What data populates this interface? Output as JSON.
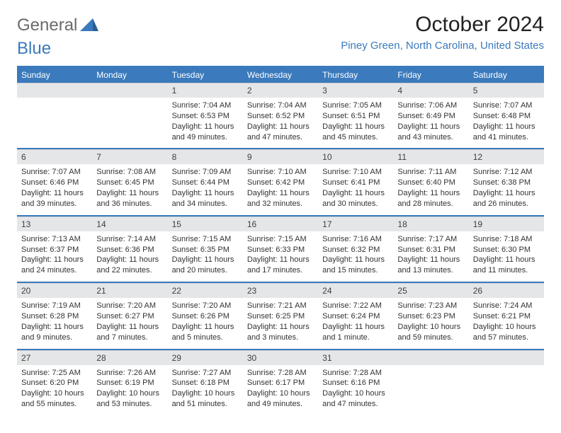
{
  "brand": {
    "part1": "General",
    "part2": "Blue"
  },
  "header": {
    "month_year": "October 2024",
    "location": "Piney Green, North Carolina, United States"
  },
  "colors": {
    "accent": "#3a7abd",
    "header_bg": "#3a7abd",
    "header_text": "#ffffff",
    "daynum_bg": "#e4e6e8",
    "body_text": "#333333",
    "page_bg": "#ffffff",
    "logo_gray": "#6a6a6a"
  },
  "calendar": {
    "day_names": [
      "Sunday",
      "Monday",
      "Tuesday",
      "Wednesday",
      "Thursday",
      "Friday",
      "Saturday"
    ],
    "leading_blanks": 2,
    "weeks": 5,
    "days": [
      {
        "n": 1,
        "sunrise": "7:04 AM",
        "sunset": "6:53 PM",
        "daylight": "11 hours and 49 minutes."
      },
      {
        "n": 2,
        "sunrise": "7:04 AM",
        "sunset": "6:52 PM",
        "daylight": "11 hours and 47 minutes."
      },
      {
        "n": 3,
        "sunrise": "7:05 AM",
        "sunset": "6:51 PM",
        "daylight": "11 hours and 45 minutes."
      },
      {
        "n": 4,
        "sunrise": "7:06 AM",
        "sunset": "6:49 PM",
        "daylight": "11 hours and 43 minutes."
      },
      {
        "n": 5,
        "sunrise": "7:07 AM",
        "sunset": "6:48 PM",
        "daylight": "11 hours and 41 minutes."
      },
      {
        "n": 6,
        "sunrise": "7:07 AM",
        "sunset": "6:46 PM",
        "daylight": "11 hours and 39 minutes."
      },
      {
        "n": 7,
        "sunrise": "7:08 AM",
        "sunset": "6:45 PM",
        "daylight": "11 hours and 36 minutes."
      },
      {
        "n": 8,
        "sunrise": "7:09 AM",
        "sunset": "6:44 PM",
        "daylight": "11 hours and 34 minutes."
      },
      {
        "n": 9,
        "sunrise": "7:10 AM",
        "sunset": "6:42 PM",
        "daylight": "11 hours and 32 minutes."
      },
      {
        "n": 10,
        "sunrise": "7:10 AM",
        "sunset": "6:41 PM",
        "daylight": "11 hours and 30 minutes."
      },
      {
        "n": 11,
        "sunrise": "7:11 AM",
        "sunset": "6:40 PM",
        "daylight": "11 hours and 28 minutes."
      },
      {
        "n": 12,
        "sunrise": "7:12 AM",
        "sunset": "6:38 PM",
        "daylight": "11 hours and 26 minutes."
      },
      {
        "n": 13,
        "sunrise": "7:13 AM",
        "sunset": "6:37 PM",
        "daylight": "11 hours and 24 minutes."
      },
      {
        "n": 14,
        "sunrise": "7:14 AM",
        "sunset": "6:36 PM",
        "daylight": "11 hours and 22 minutes."
      },
      {
        "n": 15,
        "sunrise": "7:15 AM",
        "sunset": "6:35 PM",
        "daylight": "11 hours and 20 minutes."
      },
      {
        "n": 16,
        "sunrise": "7:15 AM",
        "sunset": "6:33 PM",
        "daylight": "11 hours and 17 minutes."
      },
      {
        "n": 17,
        "sunrise": "7:16 AM",
        "sunset": "6:32 PM",
        "daylight": "11 hours and 15 minutes."
      },
      {
        "n": 18,
        "sunrise": "7:17 AM",
        "sunset": "6:31 PM",
        "daylight": "11 hours and 13 minutes."
      },
      {
        "n": 19,
        "sunrise": "7:18 AM",
        "sunset": "6:30 PM",
        "daylight": "11 hours and 11 minutes."
      },
      {
        "n": 20,
        "sunrise": "7:19 AM",
        "sunset": "6:28 PM",
        "daylight": "11 hours and 9 minutes."
      },
      {
        "n": 21,
        "sunrise": "7:20 AM",
        "sunset": "6:27 PM",
        "daylight": "11 hours and 7 minutes."
      },
      {
        "n": 22,
        "sunrise": "7:20 AM",
        "sunset": "6:26 PM",
        "daylight": "11 hours and 5 minutes."
      },
      {
        "n": 23,
        "sunrise": "7:21 AM",
        "sunset": "6:25 PM",
        "daylight": "11 hours and 3 minutes."
      },
      {
        "n": 24,
        "sunrise": "7:22 AM",
        "sunset": "6:24 PM",
        "daylight": "11 hours and 1 minute."
      },
      {
        "n": 25,
        "sunrise": "7:23 AM",
        "sunset": "6:23 PM",
        "daylight": "10 hours and 59 minutes."
      },
      {
        "n": 26,
        "sunrise": "7:24 AM",
        "sunset": "6:21 PM",
        "daylight": "10 hours and 57 minutes."
      },
      {
        "n": 27,
        "sunrise": "7:25 AM",
        "sunset": "6:20 PM",
        "daylight": "10 hours and 55 minutes."
      },
      {
        "n": 28,
        "sunrise": "7:26 AM",
        "sunset": "6:19 PM",
        "daylight": "10 hours and 53 minutes."
      },
      {
        "n": 29,
        "sunrise": "7:27 AM",
        "sunset": "6:18 PM",
        "daylight": "10 hours and 51 minutes."
      },
      {
        "n": 30,
        "sunrise": "7:28 AM",
        "sunset": "6:17 PM",
        "daylight": "10 hours and 49 minutes."
      },
      {
        "n": 31,
        "sunrise": "7:28 AM",
        "sunset": "6:16 PM",
        "daylight": "10 hours and 47 minutes."
      }
    ],
    "labels": {
      "sunrise": "Sunrise:",
      "sunset": "Sunset:",
      "daylight": "Daylight:"
    }
  }
}
